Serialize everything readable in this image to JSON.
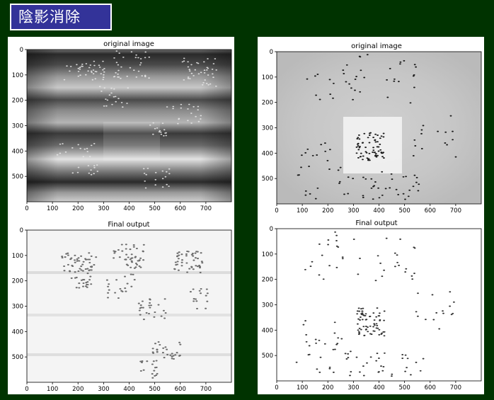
{
  "slide": {
    "title": "陰影消除",
    "background": "#003300",
    "title_bg": "#333399"
  },
  "figures": [
    {
      "name": "left",
      "plots": [
        {
          "title": "original image",
          "xticks": [
            "0",
            "100",
            "200",
            "300",
            "400",
            "500",
            "600",
            "700"
          ],
          "yticks": [
            "0",
            "100",
            "200",
            "300",
            "400",
            "500"
          ],
          "xlim": [
            0,
            800
          ],
          "ylim": [
            0,
            600
          ]
        },
        {
          "title": "Final output",
          "xticks": [
            "0",
            "100",
            "200",
            "300",
            "400",
            "500",
            "600",
            "700"
          ],
          "yticks": [
            "0",
            "100",
            "200",
            "300",
            "400",
            "500"
          ],
          "xlim": [
            0,
            800
          ],
          "ylim": [
            0,
            600
          ]
        }
      ]
    },
    {
      "name": "right",
      "plots": [
        {
          "title": "original image",
          "xticks": [
            "0",
            "100",
            "200",
            "300",
            "400",
            "500",
            "600",
            "700"
          ],
          "yticks": [
            "0",
            "100",
            "200",
            "300",
            "400",
            "500"
          ],
          "xlim": [
            0,
            800
          ],
          "ylim": [
            0,
            600
          ]
        },
        {
          "title": "Final output",
          "xticks": [
            "0",
            "100",
            "200",
            "300",
            "400",
            "500",
            "600",
            "700"
          ],
          "yticks": [
            "0",
            "100",
            "200",
            "300",
            "400",
            "500"
          ],
          "xlim": [
            0,
            800
          ],
          "ylim": [
            0,
            600
          ]
        }
      ]
    }
  ]
}
